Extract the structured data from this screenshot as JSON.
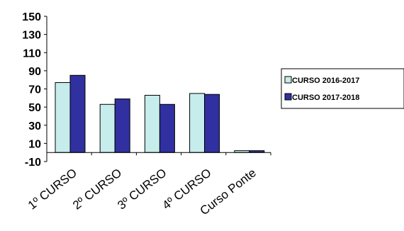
{
  "chart_data": {
    "type": "bar",
    "categories": [
      "1º CURSO",
      "2º CURSO",
      "3º CURSO",
      "4º CURSO",
      "Curso Ponte"
    ],
    "series": [
      {
        "name": "CURSO 2016-2017",
        "values": [
          77,
          53,
          63,
          65,
          2
        ],
        "color": "#c6ecec"
      },
      {
        "name": "CURSO 2017-2018",
        "values": [
          85,
          59,
          53,
          64,
          2
        ],
        "color": "#3030a0"
      }
    ],
    "y_ticks": [
      150,
      130,
      110,
      90,
      70,
      50,
      30,
      10,
      -10
    ],
    "ylim": [
      -10,
      150
    ],
    "legend_position": "right",
    "grid": false
  }
}
